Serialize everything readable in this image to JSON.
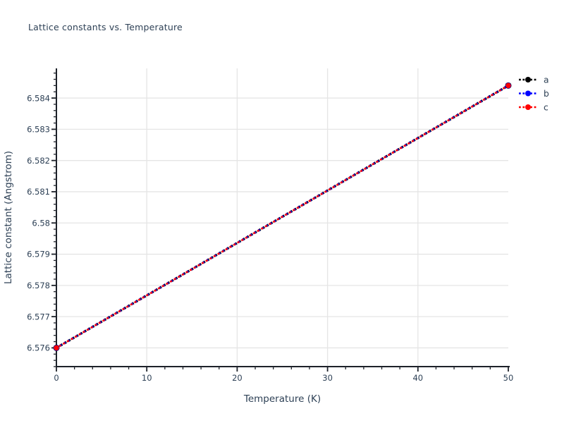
{
  "chart_data": {
    "type": "line",
    "title": "Lattice constants vs. Temperature",
    "xlabel": "Temperature (K)",
    "ylabel": "Lattice constant (Angstrom)",
    "x": [
      0,
      50
    ],
    "series": [
      {
        "name": "a",
        "color": "#000000",
        "values": [
          6.576,
          6.5844
        ]
      },
      {
        "name": "b",
        "color": "#0000ff",
        "values": [
          6.576,
          6.5844
        ]
      },
      {
        "name": "c",
        "color": "#ff0000",
        "values": [
          6.576,
          6.5844
        ]
      }
    ],
    "line_style": "dotted",
    "marker": "circle",
    "xlim": [
      0,
      50
    ],
    "ylim": [
      6.5754,
      6.58495
    ],
    "xticks": [
      0,
      10,
      20,
      30,
      40,
      50
    ],
    "xtick_labels": [
      "0",
      "10",
      "20",
      "30",
      "40",
      "50"
    ],
    "yticks": [
      6.576,
      6.577,
      6.578,
      6.579,
      6.58,
      6.581,
      6.582,
      6.583,
      6.584
    ],
    "ytick_labels": [
      "6.576",
      "6.577",
      "6.578",
      "6.579",
      "6.58",
      "6.581",
      "6.582",
      "6.583",
      "6.584"
    ],
    "x_minor_step": 2,
    "y_minor_step": 0.0002,
    "grid": true,
    "gridlines_vertical_at": [
      10,
      20,
      30,
      40
    ],
    "legend": {
      "position": "top-right-outside",
      "entries": [
        "a",
        "b",
        "c"
      ],
      "colors": [
        "#000000",
        "#0000ff",
        "#ff0000"
      ]
    },
    "colors": {
      "text": "#2e4156",
      "grid": "#e5e5e5",
      "axis": "#1d2129",
      "background": "#ffffff"
    }
  }
}
